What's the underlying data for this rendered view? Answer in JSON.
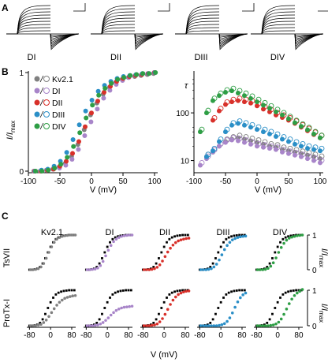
{
  "panel_letters": [
    "A",
    "B",
    "C"
  ],
  "colors": {
    "Kv2.1": "#808080",
    "DI": "#a885c9",
    "DII": "#d8302a",
    "DIII": "#2b8fc7",
    "DIV": "#2e9e45",
    "wt": "#000000"
  },
  "panel_a": {
    "labels": [
      "DI",
      "DII",
      "DIII",
      "DIV"
    ]
  },
  "panel_b_left": {
    "ylabel_main": "I/I",
    "ylabel_sub": "max",
    "xlabel": "V (mV)",
    "xticks": [
      "-100",
      "-50",
      "0",
      "50",
      "100"
    ],
    "yticks": [
      "0",
      "1"
    ],
    "legend": [
      {
        "name": "Kv2.1",
        "key": "Kv2.1"
      },
      {
        "name": "DI",
        "key": "DI"
      },
      {
        "name": "DII",
        "key": "DII"
      },
      {
        "name": "DIII",
        "key": "DIII"
      },
      {
        "name": "DIV",
        "key": "DIV"
      }
    ]
  },
  "panel_b_right": {
    "ylabel": "τ",
    "xlabel": "V (mV)",
    "xticks": [
      "-100",
      "-50",
      "0",
      "50",
      "100"
    ],
    "yticks": [
      "10",
      "100"
    ]
  },
  "panel_c": {
    "columns": [
      "Kv2.1",
      "DI",
      "DII",
      "DIII",
      "DIV"
    ],
    "rows": [
      "TsVII",
      "ProTx-I"
    ],
    "ylabel_main": "I/I",
    "ylabel_sub": "max",
    "yticks": [
      "0",
      "1"
    ],
    "xticks": [
      "-80",
      "0",
      "80"
    ],
    "xlabel": "V (mV)"
  },
  "chart_data": [
    {
      "type": "scatter",
      "panel": "B-left",
      "xlabel": "V (mV)",
      "ylabel": "I/Imax",
      "xlim": [
        -100,
        105
      ],
      "ylim": [
        0,
        1
      ],
      "x": [
        -90,
        -80,
        -70,
        -60,
        -50,
        -40,
        -30,
        -20,
        -10,
        0,
        10,
        20,
        30,
        40,
        50,
        60,
        70,
        80,
        90,
        100
      ],
      "series": [
        {
          "name": "Kv2.1",
          "values": [
            0,
            0,
            0.01,
            0.02,
            0.04,
            0.08,
            0.15,
            0.27,
            0.42,
            0.57,
            0.69,
            0.78,
            0.85,
            0.9,
            0.93,
            0.95,
            0.96,
            0.97,
            0.98,
            0.99
          ]
        },
        {
          "name": "DI",
          "values": [
            0,
            0,
            0.01,
            0.02,
            0.03,
            0.06,
            0.12,
            0.22,
            0.36,
            0.5,
            0.63,
            0.74,
            0.82,
            0.88,
            0.92,
            0.95,
            0.97,
            0.98,
            0.99,
            1.0
          ]
        },
        {
          "name": "DII",
          "values": [
            0,
            0,
            0.01,
            0.02,
            0.05,
            0.1,
            0.18,
            0.3,
            0.45,
            0.59,
            0.71,
            0.8,
            0.86,
            0.91,
            0.94,
            0.96,
            0.97,
            0.98,
            0.99,
            1.0
          ]
        },
        {
          "name": "DIII",
          "values": [
            0,
            0.01,
            0.02,
            0.05,
            0.1,
            0.19,
            0.32,
            0.47,
            0.61,
            0.72,
            0.81,
            0.87,
            0.91,
            0.94,
            0.96,
            0.97,
            0.98,
            0.99,
            0.99,
            1.0
          ]
        },
        {
          "name": "DIV",
          "values": [
            0,
            0,
            0.01,
            0.03,
            0.07,
            0.14,
            0.25,
            0.39,
            0.54,
            0.67,
            0.77,
            0.84,
            0.89,
            0.93,
            0.95,
            0.97,
            0.98,
            0.99,
            0.99,
            1.0
          ]
        }
      ]
    },
    {
      "type": "scatter",
      "panel": "B-right",
      "xlabel": "V (mV)",
      "ylabel": "τ",
      "scale_y": "log",
      "xlim": [
        -100,
        105
      ],
      "ylim": [
        6,
        700
      ],
      "x": [
        -90,
        -80,
        -70,
        -60,
        -50,
        -40,
        -30,
        -20,
        -10,
        0,
        10,
        20,
        30,
        40,
        50,
        60,
        70,
        80,
        90,
        100
      ],
      "series": [
        {
          "name": "Kv2.1",
          "values": [
            null,
            12,
            15,
            20,
            25,
            28,
            30,
            28,
            26,
            24,
            22,
            20,
            19,
            17,
            16,
            15,
            14,
            13,
            12,
            11
          ]
        },
        {
          "name": "DI",
          "values": [
            8,
            11,
            15,
            20,
            24,
            27,
            26,
            24,
            22,
            20,
            19,
            18,
            17,
            15,
            14,
            13,
            12,
            11,
            10,
            9
          ]
        },
        {
          "name": "DII",
          "values": [
            null,
            null,
            70,
            110,
            150,
            170,
            180,
            170,
            160,
            140,
            120,
            105,
            90,
            80,
            70,
            60,
            50,
            42,
            35,
            30
          ]
        },
        {
          "name": "DIII",
          "values": [
            null,
            12,
            16,
            25,
            40,
            55,
            60,
            55,
            50,
            45,
            40,
            36,
            32,
            28,
            25,
            22,
            20,
            18,
            17,
            16
          ]
        },
        {
          "name": "DIV",
          "values": [
            40,
            100,
            180,
            230,
            270,
            290,
            260,
            230,
            200,
            170,
            145,
            125,
            105,
            90,
            75,
            62,
            52,
            44,
            36,
            30
          ]
        }
      ]
    },
    {
      "type": "scatter",
      "panel": "C",
      "xlabel": "V (mV)",
      "ylabel": "I/Imax",
      "xlim": [
        -90,
        95
      ],
      "ylim": [
        0,
        1
      ],
      "note_rows": [
        "TsVII",
        "ProTx-I"
      ],
      "x": [
        -80,
        -70,
        -60,
        -50,
        -40,
        -30,
        -20,
        -10,
        0,
        10,
        20,
        30,
        40,
        50,
        60,
        70,
        80,
        90
      ],
      "series": [
        {
          "name": "Kv2.1",
          "values": [
            0,
            0,
            0.01,
            0.03,
            0.08,
            0.18,
            0.33,
            0.5,
            0.66,
            0.79,
            0.88,
            0.93,
            0.96,
            0.98,
            0.99,
            1.0,
            1.0,
            1.0
          ]
        },
        {
          "name": "TsVII Kv2.1",
          "values": [
            0,
            0,
            0.01,
            0.03,
            0.08,
            0.18,
            0.33,
            0.5,
            0.66,
            0.79,
            0.88,
            0.93,
            0.96,
            0.98,
            0.99,
            1.0,
            1.0,
            1.0
          ]
        },
        {
          "name": "TsVII DI",
          "values": [
            0,
            0,
            0.01,
            0.02,
            0.05,
            0.12,
            0.24,
            0.4,
            0.56,
            0.7,
            0.81,
            0.88,
            0.93,
            0.96,
            0.98,
            0.99,
            1.0,
            1.0
          ]
        },
        {
          "name": "TsVII DII",
          "values": [
            0,
            0,
            0,
            0.01,
            0.03,
            0.07,
            0.14,
            0.25,
            0.38,
            0.51,
            0.62,
            0.71,
            0.78,
            0.83,
            0.86,
            0.88,
            0.9,
            0.91
          ]
        },
        {
          "name": "TsVII DIII",
          "values": [
            0,
            0,
            0,
            0.01,
            0.03,
            0.08,
            0.16,
            0.28,
            0.43,
            0.58,
            0.7,
            0.79,
            0.86,
            0.9,
            0.93,
            0.95,
            0.96,
            0.97
          ]
        },
        {
          "name": "TsVII DIV",
          "values": [
            0,
            0,
            0,
            0.01,
            0.04,
            0.1,
            0.2,
            0.34,
            0.5,
            0.64,
            0.76,
            0.85,
            0.91,
            0.94,
            0.96,
            0.98,
            0.99,
            1.0
          ]
        },
        {
          "name": "ProTx-I Kv2.1",
          "values": [
            0,
            0,
            0.01,
            0.02,
            0.04,
            0.09,
            0.16,
            0.26,
            0.37,
            0.48,
            0.58,
            0.66,
            0.72,
            0.77,
            0.8,
            0.82,
            0.84,
            0.85
          ]
        },
        {
          "name": "ProTx-I DI",
          "values": [
            0,
            0,
            0,
            0.01,
            0.02,
            0.05,
            0.09,
            0.15,
            0.22,
            0.3,
            0.37,
            0.43,
            0.47,
            0.5,
            0.52,
            0.53,
            0.54,
            0.55
          ]
        },
        {
          "name": "ProTx-I DII",
          "values": [
            0,
            0,
            0,
            0.01,
            0.02,
            0.05,
            0.11,
            0.2,
            0.32,
            0.46,
            0.6,
            0.72,
            0.81,
            0.88,
            0.92,
            0.95,
            0.97,
            0.98
          ]
        },
        {
          "name": "ProTx-I DIII",
          "values": [
            0,
            0,
            0,
            0,
            0,
            0,
            0,
            0.01,
            0.03,
            0.06,
            0.12,
            0.22,
            0.36,
            0.52,
            0.67,
            0.79,
            0.87,
            0.92
          ]
        },
        {
          "name": "ProTx-I DIV",
          "values": [
            0,
            0,
            0,
            0,
            0,
            0.01,
            0.02,
            0.05,
            0.1,
            0.19,
            0.32,
            0.47,
            0.62,
            0.75,
            0.85,
            0.92,
            0.97,
            1.02
          ]
        }
      ]
    }
  ]
}
